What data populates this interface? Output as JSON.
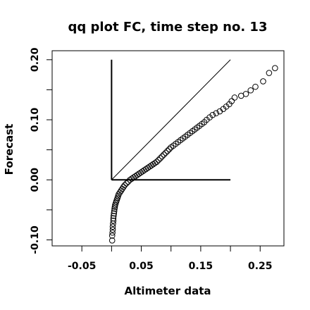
{
  "chart_data": {
    "type": "scatter",
    "title": "qq plot FC, time step no. 13",
    "xlabel": "Altimeter data",
    "ylabel": "Forecast",
    "xlim": [
      -0.1,
      0.29
    ],
    "ylim": [
      -0.11,
      0.215
    ],
    "x_ticks": [
      -0.05,
      0.05,
      0.15,
      0.25
    ],
    "x_tick_labels": [
      "-0.05",
      "0.05",
      "0.15",
      "0.25"
    ],
    "x_minor_ticks": [
      0.0,
      0.1,
      0.2
    ],
    "y_ticks": [
      -0.1,
      0.0,
      0.1,
      0.2
    ],
    "y_tick_labels": [
      "-0.10",
      "0.00",
      "0.10",
      "0.20"
    ],
    "y_minor_ticks": [
      -0.05,
      0.05,
      0.15
    ],
    "grid": false,
    "reference_lines": [
      {
        "kind": "identity",
        "x": [
          0,
          0.2
        ],
        "y": [
          0,
          0.2
        ]
      },
      {
        "kind": "vertical",
        "x": [
          0,
          0
        ],
        "y": [
          0,
          0.2
        ]
      },
      {
        "kind": "horizontal",
        "x": [
          0,
          0.2
        ],
        "y": [
          0,
          0
        ]
      }
    ],
    "points": [
      [
        0.001,
        -0.101
      ],
      [
        0.001,
        -0.093
      ],
      [
        0.0015,
        -0.088
      ],
      [
        0.002,
        -0.083
      ],
      [
        0.002,
        -0.078
      ],
      [
        0.0025,
        -0.073
      ],
      [
        0.003,
        -0.068
      ],
      [
        0.003,
        -0.064
      ],
      [
        0.0035,
        -0.06
      ],
      [
        0.004,
        -0.056
      ],
      [
        0.0045,
        -0.052
      ],
      [
        0.005,
        -0.048
      ],
      [
        0.0055,
        -0.045
      ],
      [
        0.006,
        -0.042
      ],
      [
        0.007,
        -0.039
      ],
      [
        0.008,
        -0.036
      ],
      [
        0.009,
        -0.033
      ],
      [
        0.01,
        -0.03
      ],
      [
        0.011,
        -0.027
      ],
      [
        0.012,
        -0.024
      ],
      [
        0.014,
        -0.021
      ],
      [
        0.016,
        -0.018
      ],
      [
        0.018,
        -0.015
      ],
      [
        0.02,
        -0.012
      ],
      [
        0.022,
        -0.009
      ],
      [
        0.025,
        -0.006
      ],
      [
        0.028,
        -0.003
      ],
      [
        0.031,
        0.0
      ],
      [
        0.034,
        0.002
      ],
      [
        0.037,
        0.004
      ],
      [
        0.04,
        0.006
      ],
      [
        0.043,
        0.008
      ],
      [
        0.046,
        0.01
      ],
      [
        0.049,
        0.012
      ],
      [
        0.052,
        0.014
      ],
      [
        0.055,
        0.016
      ],
      [
        0.058,
        0.018
      ],
      [
        0.061,
        0.02
      ],
      [
        0.064,
        0.022
      ],
      [
        0.067,
        0.024
      ],
      [
        0.07,
        0.026
      ],
      [
        0.073,
        0.028
      ],
      [
        0.076,
        0.03
      ],
      [
        0.079,
        0.033
      ],
      [
        0.082,
        0.036
      ],
      [
        0.085,
        0.039
      ],
      [
        0.088,
        0.042
      ],
      [
        0.091,
        0.045
      ],
      [
        0.094,
        0.048
      ],
      [
        0.097,
        0.051
      ],
      [
        0.1,
        0.054
      ],
      [
        0.104,
        0.057
      ],
      [
        0.108,
        0.06
      ],
      [
        0.112,
        0.063
      ],
      [
        0.116,
        0.066
      ],
      [
        0.12,
        0.069
      ],
      [
        0.124,
        0.072
      ],
      [
        0.128,
        0.075
      ],
      [
        0.132,
        0.078
      ],
      [
        0.136,
        0.081
      ],
      [
        0.14,
        0.084
      ],
      [
        0.144,
        0.087
      ],
      [
        0.148,
        0.09
      ],
      [
        0.152,
        0.093
      ],
      [
        0.156,
        0.096
      ],
      [
        0.16,
        0.1
      ],
      [
        0.165,
        0.104
      ],
      [
        0.17,
        0.108
      ],
      [
        0.176,
        0.111
      ],
      [
        0.182,
        0.114
      ],
      [
        0.188,
        0.118
      ],
      [
        0.193,
        0.122
      ],
      [
        0.198,
        0.126
      ],
      [
        0.202,
        0.131
      ],
      [
        0.207,
        0.137
      ],
      [
        0.218,
        0.14
      ],
      [
        0.226,
        0.143
      ],
      [
        0.234,
        0.149
      ],
      [
        0.242,
        0.155
      ],
      [
        0.255,
        0.164
      ],
      [
        0.265,
        0.178
      ],
      [
        0.275,
        0.186
      ]
    ]
  }
}
